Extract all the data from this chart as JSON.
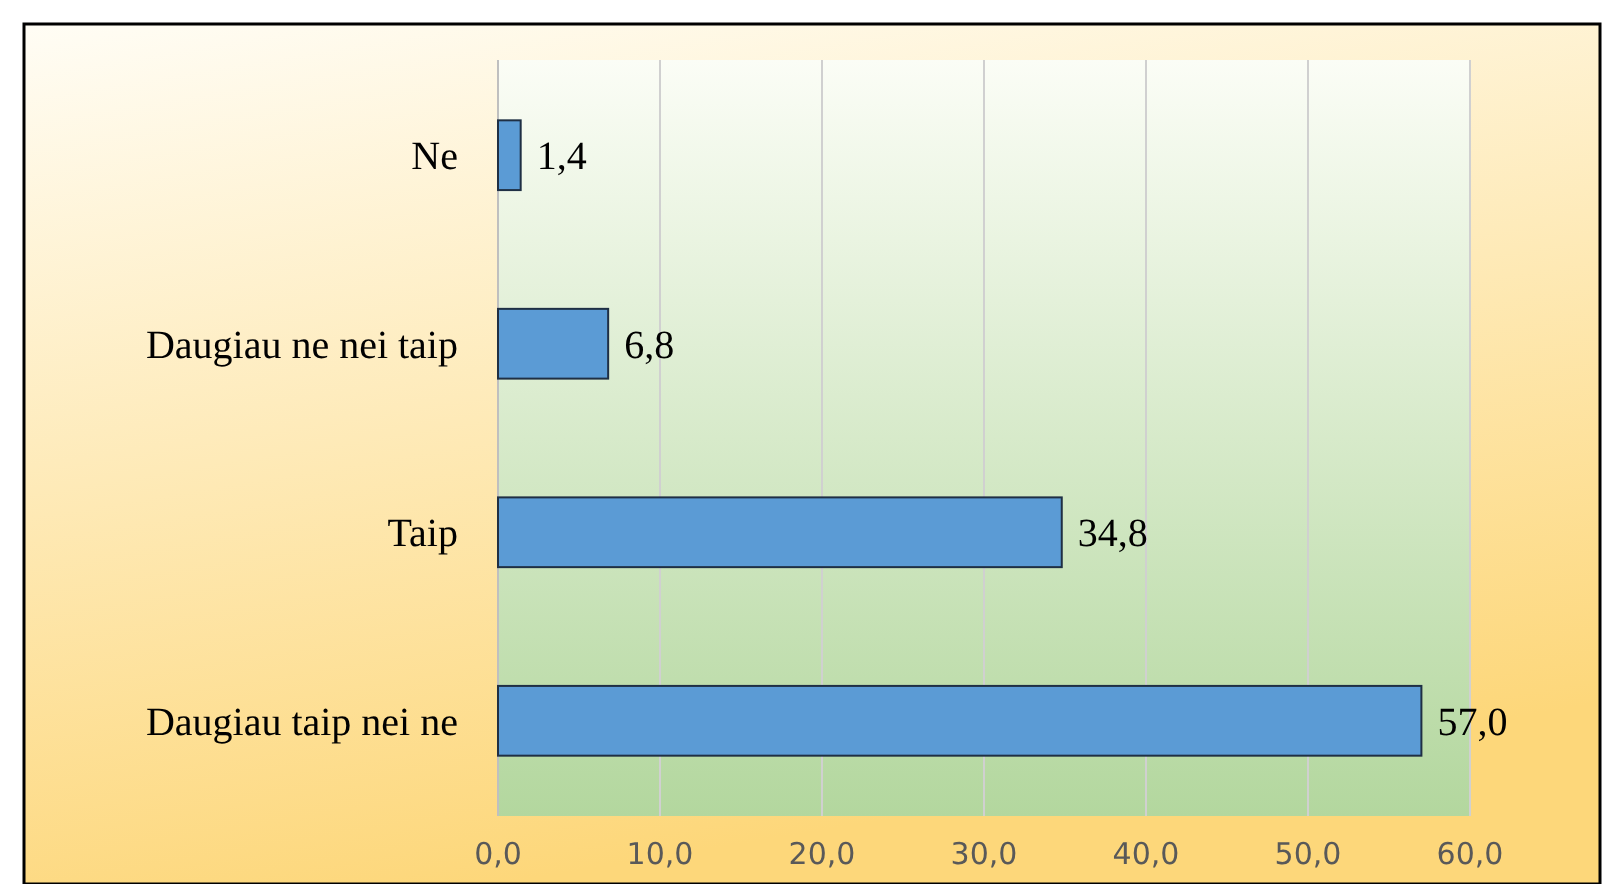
{
  "chart_data": {
    "type": "bar",
    "orientation": "horizontal",
    "categories": [
      "Ne",
      "Daugiau ne nei taip",
      "Taip",
      "Daugiau taip nei ne"
    ],
    "values": [
      1.4,
      6.8,
      34.8,
      57.0
    ],
    "value_labels": [
      "1,4",
      "6,8",
      "34,8",
      "57,0"
    ],
    "color": "#5b9bd5",
    "xlim": [
      0,
      60
    ],
    "xticks": [
      {
        "value": 0,
        "label": "0,0"
      },
      {
        "value": 10,
        "label": "10,0"
      },
      {
        "value": 20,
        "label": "20,0"
      },
      {
        "value": 30,
        "label": "30,0"
      },
      {
        "value": 40,
        "label": "40,0"
      },
      {
        "value": 50,
        "label": "50,0"
      },
      {
        "value": 60,
        "label": "60,0"
      }
    ],
    "grid": "x"
  }
}
